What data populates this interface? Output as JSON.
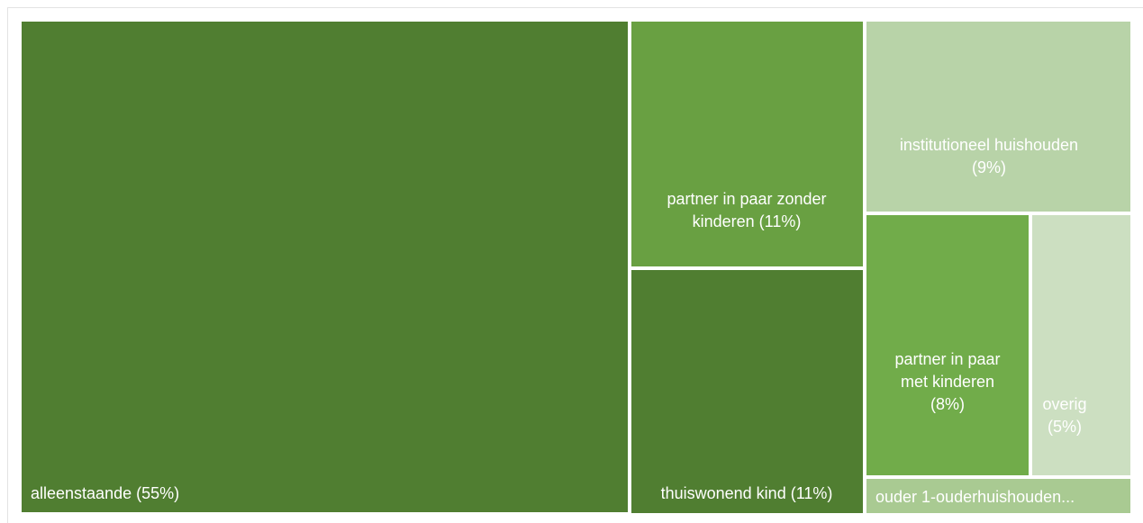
{
  "chart_data": {
    "type": "treemap",
    "items": [
      {
        "name": "alleenstaande",
        "value": 55,
        "label": [
          "alleenstaande (55%)"
        ],
        "color": "#507e31"
      },
      {
        "name": "partner in paar zonder kinderen",
        "value": 11,
        "label": [
          "partner in paar zonder",
          "kinderen (11%)"
        ],
        "color": "#69a042"
      },
      {
        "name": "thuiswonend kind",
        "value": 11,
        "label": [
          "thuiswonend kind (11%)"
        ],
        "color": "#507e31"
      },
      {
        "name": "institutioneel huishouden",
        "value": 9,
        "label": [
          "institutioneel huishouden",
          "(9%)"
        ],
        "color": "#b8d3a8"
      },
      {
        "name": "partner in paar met kinderen",
        "value": 8,
        "label": [
          "partner in paar",
          "met kinderen",
          "(8%)"
        ],
        "color": "#71ac4a"
      },
      {
        "name": "overig",
        "value": 5,
        "label": [
          "overig",
          "(5%)"
        ],
        "color": "#ccdfc1"
      },
      {
        "name": "ouder 1-ouderhuishouden",
        "value": 1,
        "label": [
          "ouder 1-ouderhuishouden..."
        ],
        "color": "#a9ca92"
      }
    ]
  }
}
